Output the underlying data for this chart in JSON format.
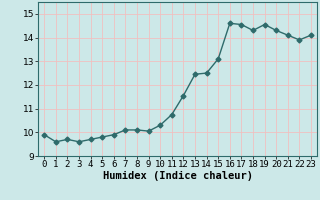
{
  "title": "",
  "xlabel": "Humidex (Indice chaleur)",
  "x": [
    0,
    1,
    2,
    3,
    4,
    5,
    6,
    7,
    8,
    9,
    10,
    11,
    12,
    13,
    14,
    15,
    16,
    17,
    18,
    19,
    20,
    21,
    22,
    23
  ],
  "y": [
    9.9,
    9.6,
    9.7,
    9.6,
    9.7,
    9.8,
    9.9,
    10.1,
    10.1,
    10.05,
    10.3,
    10.75,
    11.55,
    12.45,
    12.5,
    13.1,
    14.6,
    14.55,
    14.3,
    14.55,
    14.3,
    14.1,
    13.9,
    14.1
  ],
  "line_color": "#2e6b6b",
  "marker": "D",
  "marker_size": 2.5,
  "bg_color": "#cce8e8",
  "grid_color_major": "#f0c0c0",
  "grid_color_minor": "#e8d8d8",
  "xlim": [
    -0.5,
    23.5
  ],
  "ylim": [
    9.0,
    15.5
  ],
  "yticks": [
    9,
    10,
    11,
    12,
    13,
    14,
    15
  ],
  "xtick_labels": [
    "0",
    "1",
    "2",
    "3",
    "4",
    "5",
    "6",
    "7",
    "8",
    "9",
    "10",
    "11",
    "12",
    "13",
    "14",
    "15",
    "16",
    "17",
    "18",
    "19",
    "20",
    "21",
    "22",
    "23"
  ],
  "xlabel_fontsize": 7.5,
  "tick_fontsize": 6.5,
  "linewidth": 1.0
}
